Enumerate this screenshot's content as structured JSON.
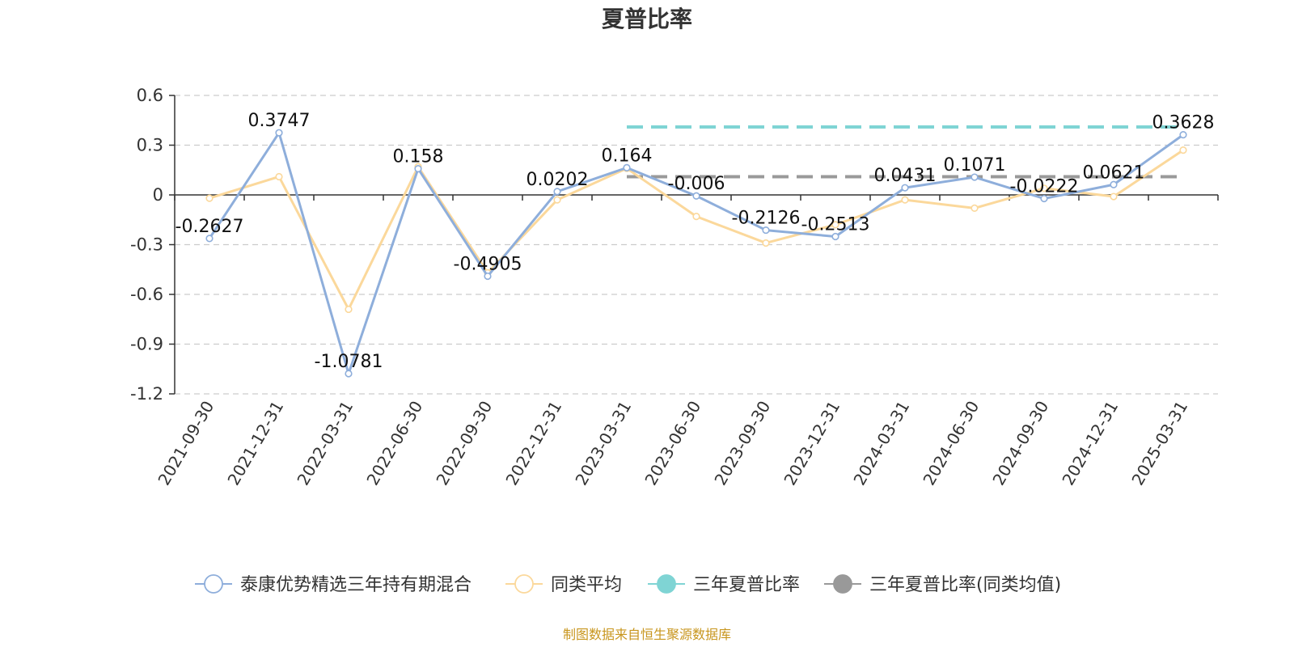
{
  "chart_data": {
    "type": "line",
    "title": "夏普比率",
    "x": [
      "2021-09-30",
      "2021-12-31",
      "2022-03-31",
      "2022-06-30",
      "2022-09-30",
      "2022-12-31",
      "2023-03-31",
      "2023-06-30",
      "2023-09-30",
      "2023-12-31",
      "2024-03-31",
      "2024-06-30",
      "2024-09-30",
      "2024-12-31",
      "2025-03-31"
    ],
    "ylim": [
      -1.2,
      0.6
    ],
    "yticks": [
      0.6,
      0.3,
      0,
      -0.3,
      -0.6,
      -0.9,
      -1.2
    ],
    "ytick_labels": [
      "0.6",
      "0.3",
      "0",
      "-0.3",
      "-0.6",
      "-0.9",
      "-1.2"
    ],
    "grid": true,
    "legend_position": "bottom",
    "series": [
      {
        "name": "泰康优势精选三年持有期混合",
        "color": "#8eaedb",
        "values": [
          -0.2627,
          0.3747,
          -1.0781,
          0.158,
          -0.4905,
          0.0202,
          0.164,
          -0.006,
          -0.2126,
          -0.2513,
          0.0431,
          0.1071,
          -0.0222,
          0.0621,
          0.3628
        ],
        "labels": [
          "-0.2627",
          "0.3747",
          "-1.0781",
          "0.158",
          "-0.4905",
          "0.0202",
          "0.164",
          "-0.006",
          "-0.2126",
          "-0.2513",
          "0.0431",
          "0.1071",
          "-0.0222",
          "0.0621",
          "0.3628"
        ]
      },
      {
        "name": "同类平均",
        "color": "#fbd89b",
        "values": [
          -0.02,
          0.11,
          -0.69,
          0.17,
          -0.47,
          -0.03,
          0.16,
          -0.13,
          -0.29,
          -0.18,
          -0.03,
          -0.08,
          0.04,
          -0.01,
          0.27
        ]
      },
      {
        "name": "三年夏普比率",
        "color": "#7fd4d4",
        "dashed": true,
        "x_start": "2023-03-31",
        "x_end": "2025-03-31",
        "value": 0.41
      },
      {
        "name": "三年夏普比率(同类均值)",
        "color": "#999999",
        "dashed": true,
        "x_start": "2023-03-31",
        "x_end": "2025-03-31",
        "value": 0.11
      }
    ]
  },
  "source_note": "制图数据来自恒生聚源数据库"
}
